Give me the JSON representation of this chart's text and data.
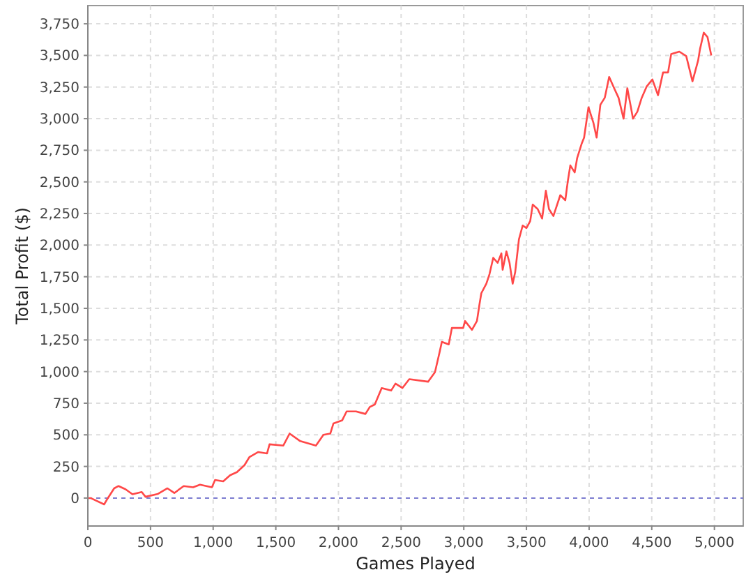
{
  "chart_data": {
    "type": "line",
    "xlabel": "Games Played",
    "ylabel": "Total Profit ($)",
    "xlim": [
      0,
      5230
    ],
    "ylim": [
      -221,
      3894
    ],
    "xticks": [
      0,
      500,
      {
        "value": 1000,
        "label": "1,000"
      },
      {
        "value": 1500,
        "label": "1,500"
      },
      {
        "value": 2000,
        "label": "2,000"
      },
      {
        "value": 2500,
        "label": "2,500"
      },
      {
        "value": 3000,
        "label": "3,000"
      },
      {
        "value": 3500,
        "label": "3,500"
      },
      {
        "value": 4000,
        "label": "4,000"
      },
      {
        "value": 4500,
        "label": "4,500"
      },
      {
        "value": 5000,
        "label": "5,000"
      }
    ],
    "yticks": [
      0,
      250,
      500,
      750,
      {
        "value": 1000,
        "label": "1,000"
      },
      {
        "value": 1250,
        "label": "1,250"
      },
      {
        "value": 1500,
        "label": "1,500"
      },
      {
        "value": 1750,
        "label": "1,750"
      },
      {
        "value": 2000,
        "label": "2,000"
      },
      {
        "value": 2250,
        "label": "2,250"
      },
      {
        "value": 2500,
        "label": "2,500"
      },
      {
        "value": 2750,
        "label": "2,750"
      },
      {
        "value": 3000,
        "label": "3,000"
      },
      {
        "value": 3250,
        "label": "3,250"
      },
      {
        "value": 3500,
        "label": "3,500"
      },
      {
        "value": 3750,
        "label": "3,750"
      }
    ],
    "grid": true,
    "marker": "none",
    "line_style": "solid",
    "ref_lines": [
      {
        "axis": "y",
        "value": 0,
        "color": "#7b7bd0",
        "line_style": "dashed"
      }
    ],
    "series": [
      {
        "color": "#ff4848",
        "x": [
          0,
          22,
          130,
          160,
          210,
          245,
          300,
          356,
          430,
          460,
          560,
          635,
          690,
          765,
          840,
          895,
          990,
          1015,
          1080,
          1135,
          1190,
          1250,
          1290,
          1360,
          1430,
          1450,
          1560,
          1610,
          1695,
          1820,
          1880,
          1935,
          1960,
          2030,
          2065,
          2140,
          2215,
          2250,
          2290,
          2345,
          2420,
          2455,
          2510,
          2565,
          2715,
          2770,
          2805,
          2825,
          2880,
          2905,
          2995,
          3010,
          3065,
          3105,
          3125,
          3140,
          3180,
          3205,
          3235,
          3270,
          3300,
          3310,
          3340,
          3365,
          3390,
          3410,
          3440,
          3470,
          3500,
          3530,
          3550,
          3590,
          3625,
          3655,
          3680,
          3715,
          3770,
          3810,
          3830,
          3850,
          3885,
          3905,
          3940,
          3960,
          3995,
          4035,
          4060,
          4090,
          4125,
          4160,
          4200,
          4235,
          4275,
          4305,
          4330,
          4350,
          4385,
          4420,
          4460,
          4505,
          4550,
          4590,
          4630,
          4655,
          4720,
          4775,
          4825,
          4870,
          4885,
          4915,
          4945,
          4975
        ],
        "values": [
          0,
          0,
          -50,
          0,
          77,
          95,
          70,
          30,
          48,
          10,
          33,
          77,
          40,
          95,
          85,
          106,
          85,
          143,
          132,
          180,
          205,
          260,
          325,
          364,
          353,
          425,
          415,
          510,
          450,
          415,
          500,
          510,
          590,
          615,
          685,
          685,
          665,
          720,
          740,
          870,
          850,
          905,
          870,
          940,
          920,
          995,
          1145,
          1235,
          1215,
          1345,
          1345,
          1400,
          1330,
          1400,
          1530,
          1620,
          1695,
          1770,
          1900,
          1860,
          1935,
          1805,
          1950,
          1860,
          1695,
          1785,
          2045,
          2155,
          2135,
          2190,
          2320,
          2285,
          2210,
          2430,
          2285,
          2230,
          2395,
          2355,
          2505,
          2630,
          2575,
          2690,
          2800,
          2850,
          3090,
          2965,
          2850,
          3110,
          3165,
          3330,
          3240,
          3165,
          3000,
          3240,
          3110,
          3000,
          3055,
          3165,
          3255,
          3310,
          3185,
          3365,
          3365,
          3510,
          3530,
          3495,
          3295,
          3460,
          3550,
          3680,
          3645,
          3500
        ]
      }
    ]
  }
}
